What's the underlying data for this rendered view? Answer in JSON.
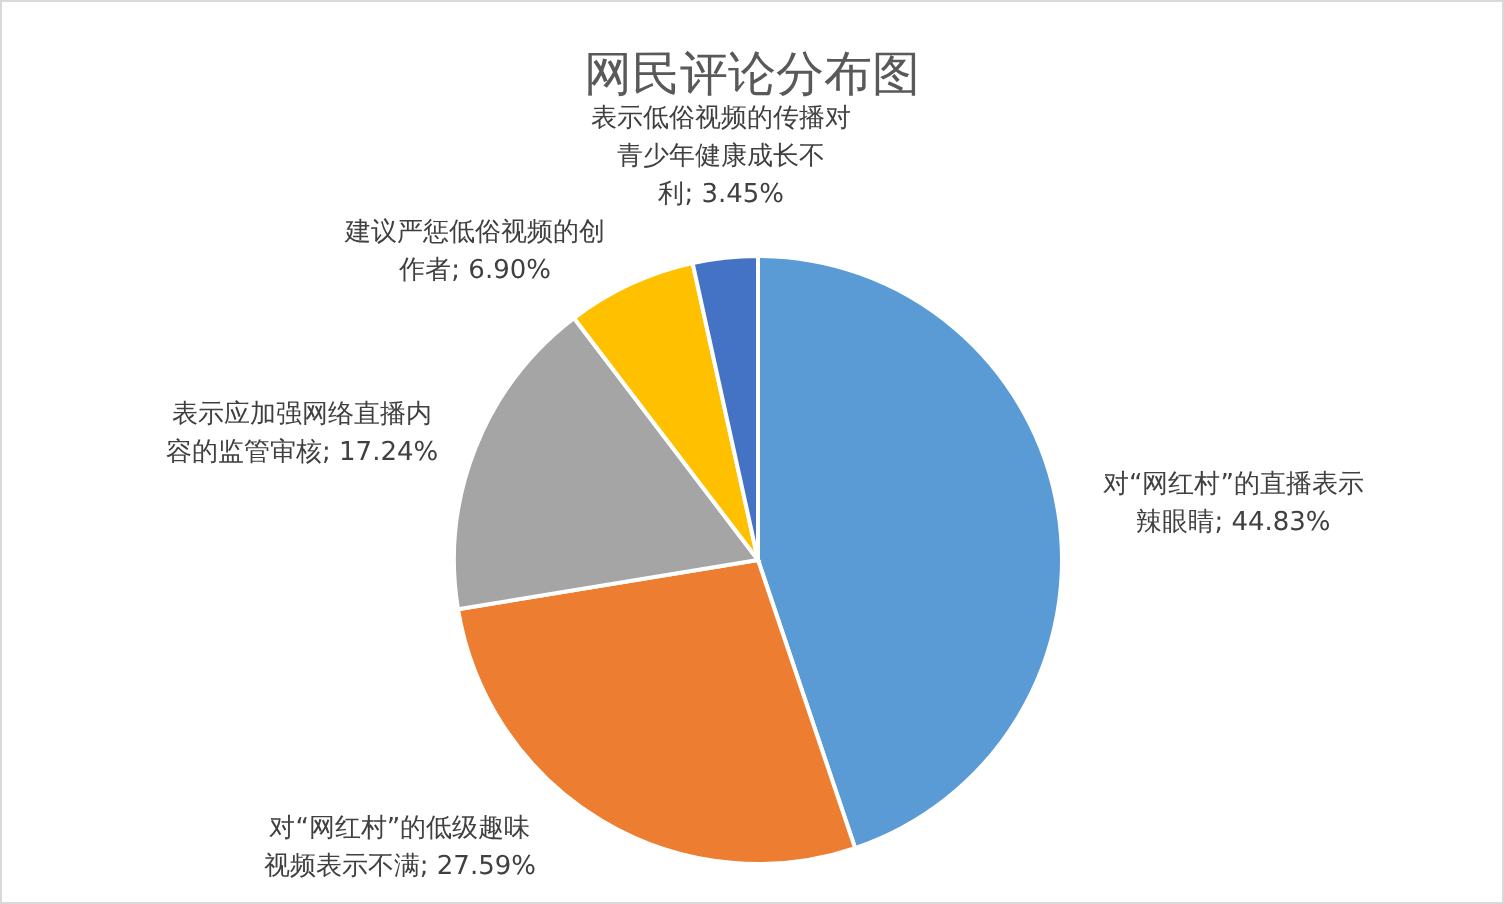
{
  "chart_data": {
    "type": "pie",
    "title": "网民评论分布图",
    "categories": [
      "对“网红村”的直播表示辣眼睛",
      "对“网红村”的低级趣味视频表示不满",
      "表示应加强网络直播内容的监管审核",
      "建议严惩低俗视频的创作者",
      "表示低俗视频的传播对青少年健康成长不利"
    ],
    "values": [
      44.83,
      27.59,
      17.24,
      6.9,
      3.45
    ],
    "value_labels": [
      "44.83%",
      "27.59%",
      "17.24%",
      "6.90%",
      "3.45%"
    ],
    "colors": [
      "#5b9bd5",
      "#ed7d31",
      "#a5a5a5",
      "#ffc000",
      "#4472c4"
    ]
  }
}
